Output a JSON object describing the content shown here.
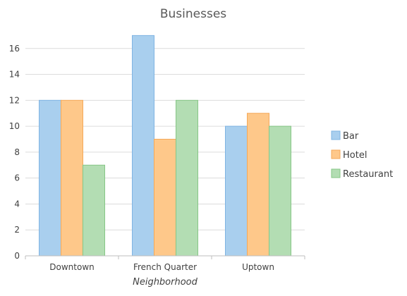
{
  "chart_data": {
    "type": "bar",
    "title": "Businesses",
    "xlabel": "Neighborhood",
    "ylabel": "",
    "categories": [
      "Downtown",
      "French Quarter",
      "Uptown"
    ],
    "series": [
      {
        "name": "Bar",
        "values": [
          12,
          17,
          10
        ],
        "color": "#a9cfee",
        "stroke": "#7fb4e3"
      },
      {
        "name": "Hotel",
        "values": [
          12,
          9,
          11
        ],
        "color": "#fec88a",
        "stroke": "#f4a95a"
      },
      {
        "name": "Restaurant",
        "values": [
          7,
          12,
          10
        ],
        "color": "#b3ddb3",
        "stroke": "#86c686"
      }
    ],
    "ylim": [
      0,
      18
    ],
    "yticks": [
      "0",
      "2",
      "4",
      "6",
      "8",
      "10",
      "12",
      "14",
      "16"
    ],
    "grid": true,
    "legend": "right"
  }
}
